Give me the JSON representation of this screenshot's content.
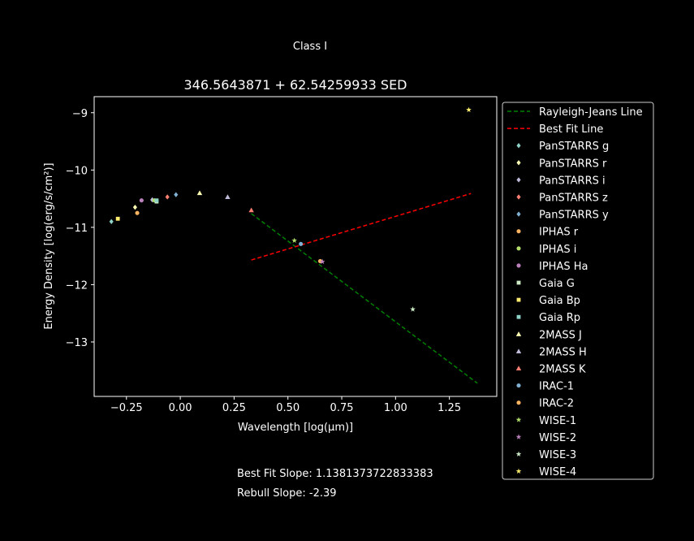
{
  "figure": {
    "suptitle": "Class I",
    "best_fit_note": "Best Fit Slope: 1.1381373722833383",
    "rebull_note": "Rebull Slope: -2.39"
  },
  "chart_data": {
    "type": "scatter",
    "title": "346.5643871 + 62.54259933 SED",
    "xlabel": "Wavelength [log(μm)]",
    "ylabel": "Energy Density [log(erg/s/cm²)]",
    "xlim": [
      -0.4,
      1.47
    ],
    "ylim": [
      -13.95,
      -8.72
    ],
    "xticks": [
      -0.25,
      0.0,
      0.25,
      0.5,
      0.75,
      1.0,
      1.25
    ],
    "xtick_labels": [
      "−0.25",
      "0.00",
      "0.25",
      "0.50",
      "0.75",
      "1.00",
      "1.25"
    ],
    "yticks": [
      -9,
      -10,
      -11,
      -12,
      -13
    ],
    "ytick_labels": [
      "−9",
      "−10",
      "−11",
      "−12",
      "−13"
    ],
    "legend_position": "outside-right",
    "lines": [
      {
        "name": "Rayleigh-Jeans Line",
        "color": "#008000",
        "dash": "dashed",
        "x": [
          0.33,
          1.38
        ],
        "y": [
          -10.76,
          -13.72
        ]
      },
      {
        "name": "Best Fit Line",
        "color": "#ff0000",
        "dash": "dashed",
        "x": [
          0.33,
          1.35
        ],
        "y": [
          -11.57,
          -10.41
        ]
      }
    ],
    "series": [
      {
        "name": "PanSTARRS g",
        "marker": "diamond",
        "color": "#8dd3c7",
        "x": [
          -0.32
        ],
        "y": [
          -10.9
        ]
      },
      {
        "name": "PanSTARRS r",
        "marker": "diamond",
        "color": "#ffffb3",
        "x": [
          -0.21
        ],
        "y": [
          -10.65
        ]
      },
      {
        "name": "PanSTARRS i",
        "marker": "diamond",
        "color": "#bebada",
        "x": [
          -0.13
        ],
        "y": [
          -10.52
        ]
      },
      {
        "name": "PanSTARRS z",
        "marker": "diamond",
        "color": "#fb8072",
        "x": [
          -0.06
        ],
        "y": [
          -10.47
        ]
      },
      {
        "name": "PanSTARRS y",
        "marker": "diamond",
        "color": "#80b1d3",
        "x": [
          -0.02
        ],
        "y": [
          -10.43
        ]
      },
      {
        "name": "IPHAS r",
        "marker": "circle",
        "color": "#fdb462",
        "x": [
          -0.2
        ],
        "y": [
          -10.75
        ]
      },
      {
        "name": "IPHAS i",
        "marker": "circle",
        "color": "#b3de69",
        "x": [
          -0.12
        ],
        "y": [
          -10.53
        ]
      },
      {
        "name": "IPHAS Ha",
        "marker": "circle",
        "color": "#bc80bd",
        "x": [
          -0.18
        ],
        "y": [
          -10.53
        ]
      },
      {
        "name": "Gaia G",
        "marker": "square",
        "color": "#ccebc5",
        "x": [
          -0.11
        ],
        "y": [
          -10.55
        ]
      },
      {
        "name": "Gaia Bp",
        "marker": "square",
        "color": "#ffed6f",
        "x": [
          -0.29
        ],
        "y": [
          -10.85
        ]
      },
      {
        "name": "Gaia Rp",
        "marker": "square",
        "color": "#8dd3c7",
        "x": [
          -0.11
        ],
        "y": [
          -10.53
        ]
      },
      {
        "name": "2MASS J",
        "marker": "triangle",
        "color": "#ffffb3",
        "x": [
          0.09
        ],
        "y": [
          -10.4
        ]
      },
      {
        "name": "2MASS H",
        "marker": "triangle",
        "color": "#bebada",
        "x": [
          0.22
        ],
        "y": [
          -10.47
        ]
      },
      {
        "name": "2MASS K",
        "marker": "triangle",
        "color": "#fb8072",
        "x": [
          0.33
        ],
        "y": [
          -10.7
        ]
      },
      {
        "name": "IRAC-1",
        "marker": "circle",
        "color": "#80b1d3",
        "x": [
          0.56
        ],
        "y": [
          -11.29
        ]
      },
      {
        "name": "IRAC-2",
        "marker": "circle",
        "color": "#fdb462",
        "x": [
          0.65
        ],
        "y": [
          -11.59
        ]
      },
      {
        "name": "WISE-1",
        "marker": "star",
        "color": "#b3de69",
        "x": [
          0.53
        ],
        "y": [
          -11.23
        ]
      },
      {
        "name": "WISE-2",
        "marker": "star",
        "color": "#bc80bd",
        "x": [
          0.66
        ],
        "y": [
          -11.6
        ]
      },
      {
        "name": "WISE-3",
        "marker": "star",
        "color": "#ccebc5",
        "x": [
          1.08
        ],
        "y": [
          -12.43
        ]
      },
      {
        "name": "WISE-4",
        "marker": "star",
        "color": "#ffed6f",
        "x": [
          1.34
        ],
        "y": [
          -8.95
        ]
      }
    ]
  }
}
